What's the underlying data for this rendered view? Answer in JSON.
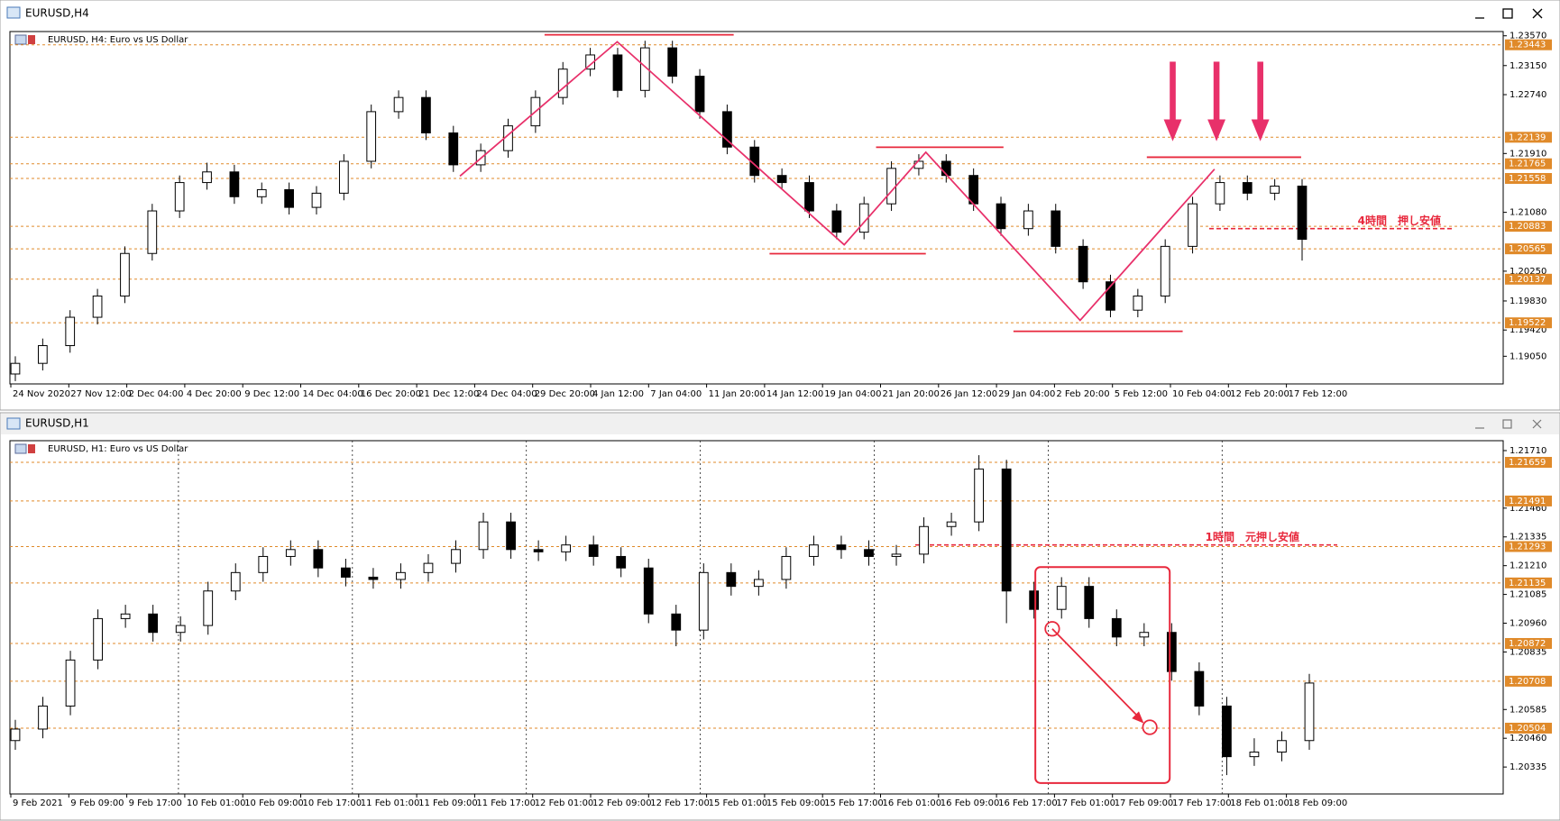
{
  "chart_data": [
    {
      "type": "candlestick",
      "window_title": "EURUSD,H4",
      "title": "EURUSD, H4:  Euro vs US Dollar",
      "ylim": [
        1.1866,
        1.2363
      ],
      "yticks": [
        {
          "value": 1.2357,
          "label": "1.23570"
        },
        {
          "value": 1.2315,
          "label": "1.23150"
        },
        {
          "value": 1.2274,
          "label": "1.22740"
        },
        {
          "value": 1.2191,
          "label": "1.21910"
        },
        {
          "value": 1.2108,
          "label": "1.21080"
        },
        {
          "value": 1.2025,
          "label": "1.20250"
        },
        {
          "value": 1.1983,
          "label": "1.19830"
        },
        {
          "value": 1.1942,
          "label": "1.19420"
        },
        {
          "value": 1.1905,
          "label": "1.19050"
        }
      ],
      "x_labels": [
        "24 Nov 2020",
        "27 Nov 12:00",
        "2 Dec 04:00",
        "4 Dec 20:00",
        "9 Dec 12:00",
        "14 Dec 04:00",
        "16 Dec 20:00",
        "21 Dec 12:00",
        "24 Dec 04:00",
        "29 Dec 20:00",
        "4 Jan 12:00",
        "7 Jan 04:00",
        "11 Jan 20:00",
        "14 Jan 12:00",
        "19 Jan 04:00",
        "21 Jan 20:00",
        "26 Jan 12:00",
        "29 Jan 04:00",
        "2 Feb 20:00",
        "5 Feb 12:00",
        "10 Feb 04:00",
        "12 Feb 20:00",
        "17 Feb 12:00"
      ],
      "levels": [
        1.23443,
        1.22139,
        1.21765,
        1.21558,
        1.20883,
        1.20565,
        1.20137,
        1.19522
      ],
      "level_color": "#e08a2a",
      "annotation": {
        "text": "4時間　押し安値",
        "value": 1.2085
      },
      "grid": false,
      "up_color": "#ffffff",
      "down_color": "#000000",
      "candles": [
        [
          1.188,
          1.1905,
          1.187,
          1.1895
        ],
        [
          1.1895,
          1.193,
          1.1885,
          1.192
        ],
        [
          1.192,
          1.197,
          1.191,
          1.196
        ],
        [
          1.196,
          1.2,
          1.195,
          1.199
        ],
        [
          1.199,
          1.206,
          1.198,
          1.205
        ],
        [
          1.205,
          1.212,
          1.204,
          1.211
        ],
        [
          1.211,
          1.216,
          1.21,
          1.215
        ],
        [
          1.215,
          1.2178,
          1.214,
          1.2165
        ],
        [
          1.2165,
          1.2175,
          1.212,
          1.213
        ],
        [
          1.213,
          1.215,
          1.212,
          1.214
        ],
        [
          1.214,
          1.215,
          1.2105,
          1.2115
        ],
        [
          1.2115,
          1.2145,
          1.2105,
          1.2135
        ],
        [
          1.2135,
          1.219,
          1.2125,
          1.218
        ],
        [
          1.218,
          1.226,
          1.217,
          1.225
        ],
        [
          1.225,
          1.228,
          1.224,
          1.227
        ],
        [
          1.227,
          1.228,
          1.221,
          1.222
        ],
        [
          1.222,
          1.223,
          1.2165,
          1.2175
        ],
        [
          1.2175,
          1.2205,
          1.2165,
          1.2195
        ],
        [
          1.2195,
          1.224,
          1.2185,
          1.223
        ],
        [
          1.223,
          1.228,
          1.222,
          1.227
        ],
        [
          1.227,
          1.232,
          1.226,
          1.231
        ],
        [
          1.231,
          1.234,
          1.23,
          1.233
        ],
        [
          1.233,
          1.234,
          1.227,
          1.228
        ],
        [
          1.228,
          1.235,
          1.227,
          1.234
        ],
        [
          1.234,
          1.235,
          1.229,
          1.23
        ],
        [
          1.23,
          1.231,
          1.224,
          1.225
        ],
        [
          1.225,
          1.226,
          1.219,
          1.22
        ],
        [
          1.22,
          1.221,
          1.215,
          1.216
        ],
        [
          1.216,
          1.217,
          1.214,
          1.215
        ],
        [
          1.215,
          1.216,
          1.21,
          1.211
        ],
        [
          1.211,
          1.212,
          1.207,
          1.208
        ],
        [
          1.208,
          1.213,
          1.207,
          1.212
        ],
        [
          1.212,
          1.218,
          1.211,
          1.217
        ],
        [
          1.217,
          1.219,
          1.216,
          1.218
        ],
        [
          1.218,
          1.219,
          1.215,
          1.216
        ],
        [
          1.216,
          1.217,
          1.211,
          1.212
        ],
        [
          1.212,
          1.213,
          1.2075,
          1.2085
        ],
        [
          1.2085,
          1.212,
          1.2075,
          1.211
        ],
        [
          1.211,
          1.212,
          1.205,
          1.206
        ],
        [
          1.206,
          1.207,
          1.2,
          1.201
        ],
        [
          1.201,
          1.202,
          1.196,
          1.197
        ],
        [
          1.197,
          1.2,
          1.196,
          1.199
        ],
        [
          1.199,
          1.207,
          1.198,
          1.206
        ],
        [
          1.206,
          1.213,
          1.205,
          1.212
        ],
        [
          1.212,
          1.216,
          1.211,
          1.215
        ],
        [
          1.215,
          1.216,
          1.2125,
          1.2135
        ],
        [
          1.2135,
          1.2155,
          1.2125,
          1.2145
        ],
        [
          1.2145,
          1.2155,
          1.204,
          1.207
        ]
      ]
    },
    {
      "type": "candlestick",
      "window_title": "EURUSD,H1",
      "title": "EURUSD, H1:  Euro vs US Dollar",
      "ylim": [
        1.20218,
        1.21753
      ],
      "yticks": [
        {
          "value": 1.2171,
          "label": "1.21710"
        },
        {
          "value": 1.2146,
          "label": "1.21460"
        },
        {
          "value": 1.21335,
          "label": "1.21335"
        },
        {
          "value": 1.2121,
          "label": "1.21210"
        },
        {
          "value": 1.21085,
          "label": "1.21085"
        },
        {
          "value": 1.2096,
          "label": "1.20960"
        },
        {
          "value": 1.20835,
          "label": "1.20835"
        },
        {
          "value": 1.20585,
          "label": "1.20585"
        },
        {
          "value": 1.2046,
          "label": "1.20460"
        },
        {
          "value": 1.20335,
          "label": "1.20335"
        }
      ],
      "x_labels": [
        "9 Feb 2021",
        "9 Feb 09:00",
        "9 Feb 17:00",
        "10 Feb 01:00",
        "10 Feb 09:00",
        "10 Feb 17:00",
        "11 Feb 01:00",
        "11 Feb 09:00",
        "11 Feb 17:00",
        "12 Feb 01:00",
        "12 Feb 09:00",
        "12 Feb 17:00",
        "15 Feb 01:00",
        "15 Feb 09:00",
        "15 Feb 17:00",
        "16 Feb 01:00",
        "16 Feb 09:00",
        "16 Feb 17:00",
        "17 Feb 01:00",
        "17 Feb 09:00",
        "17 Feb 17:00",
        "18 Feb 01:00",
        "18 Feb 09:00"
      ],
      "levels": [
        1.21659,
        1.21491,
        1.21293,
        1.21135,
        1.20872,
        1.20708,
        1.20504
      ],
      "level_color": "#e08a2a",
      "annotation": {
        "text": "1時間　元押し安値",
        "value": 1.213
      },
      "grid": true,
      "up_color": "#ffffff",
      "down_color": "#000000",
      "candles": [
        [
          1.2045,
          1.2054,
          1.2041,
          1.205
        ],
        [
          1.205,
          1.2064,
          1.2046,
          1.206
        ],
        [
          1.206,
          1.2084,
          1.2056,
          1.208
        ],
        [
          1.208,
          1.2102,
          1.2076,
          1.2098
        ],
        [
          1.2098,
          1.2104,
          1.2094,
          1.21
        ],
        [
          1.21,
          1.2104,
          1.2088,
          1.2092
        ],
        [
          1.2092,
          1.2099,
          1.2088,
          1.2095
        ],
        [
          1.2095,
          1.2114,
          1.2091,
          1.211
        ],
        [
          1.211,
          1.2122,
          1.2106,
          1.2118
        ],
        [
          1.2118,
          1.2129,
          1.2114,
          1.2125
        ],
        [
          1.2125,
          1.2132,
          1.2121,
          1.2128
        ],
        [
          1.2128,
          1.2132,
          1.2116,
          1.212
        ],
        [
          1.212,
          1.2124,
          1.2112,
          1.2116
        ],
        [
          1.2116,
          1.212,
          1.2111,
          1.2115
        ],
        [
          1.2115,
          1.2122,
          1.2111,
          1.2118
        ],
        [
          1.2118,
          1.2126,
          1.2114,
          1.2122
        ],
        [
          1.2122,
          1.2132,
          1.2118,
          1.2128
        ],
        [
          1.2128,
          1.2144,
          1.2124,
          1.214
        ],
        [
          1.214,
          1.2144,
          1.2124,
          1.2128
        ],
        [
          1.2128,
          1.2132,
          1.2123,
          1.2127
        ],
        [
          1.2127,
          1.2134,
          1.2123,
          1.213
        ],
        [
          1.213,
          1.2134,
          1.2121,
          1.2125
        ],
        [
          1.2125,
          1.2129,
          1.2116,
          1.212
        ],
        [
          1.212,
          1.2124,
          1.2096,
          1.21
        ],
        [
          1.21,
          1.2104,
          1.2086,
          1.2093
        ],
        [
          1.2093,
          1.2122,
          1.2089,
          1.2118
        ],
        [
          1.2118,
          1.2122,
          1.2108,
          1.2112
        ],
        [
          1.2112,
          1.2119,
          1.2108,
          1.2115
        ],
        [
          1.2115,
          1.2129,
          1.2111,
          1.2125
        ],
        [
          1.2125,
          1.2134,
          1.2121,
          1.213
        ],
        [
          1.213,
          1.2134,
          1.2124,
          1.2128
        ],
        [
          1.2128,
          1.2132,
          1.2121,
          1.2125
        ],
        [
          1.2125,
          1.213,
          1.2121,
          1.2126
        ],
        [
          1.2126,
          1.2142,
          1.2122,
          1.2138
        ],
        [
          1.2138,
          1.2144,
          1.2134,
          1.214
        ],
        [
          1.214,
          1.2169,
          1.2136,
          1.2163
        ],
        [
          1.2163,
          1.2167,
          1.2096,
          1.211
        ],
        [
          1.211,
          1.2114,
          1.2098,
          1.2102
        ],
        [
          1.2102,
          1.2116,
          1.2098,
          1.2112
        ],
        [
          1.2112,
          1.2116,
          1.2094,
          1.2098
        ],
        [
          1.2098,
          1.2102,
          1.2086,
          1.209
        ],
        [
          1.209,
          1.2096,
          1.2086,
          1.2092
        ],
        [
          1.2092,
          1.2096,
          1.2071,
          1.2075
        ],
        [
          1.2075,
          1.2079,
          1.2056,
          1.206
        ],
        [
          1.206,
          1.2064,
          1.203,
          1.2038
        ],
        [
          1.2038,
          1.2046,
          1.2034,
          1.204
        ],
        [
          1.204,
          1.2049,
          1.2036,
          1.2045
        ],
        [
          1.2045,
          1.2074,
          1.2041,
          1.207
        ]
      ]
    }
  ]
}
